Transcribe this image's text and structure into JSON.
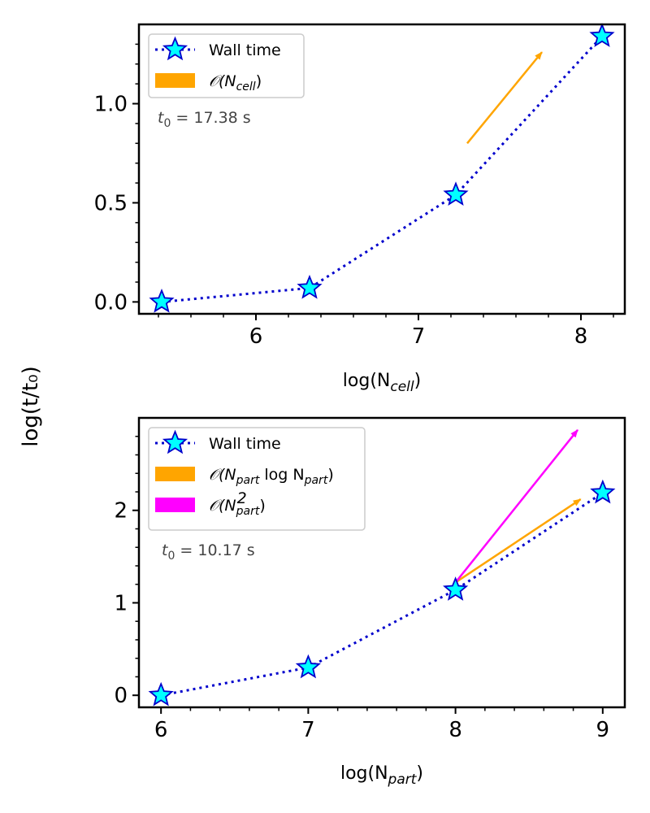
{
  "figure": {
    "ylabel": "log(t/t₀)"
  },
  "chart_data": [
    {
      "type": "line",
      "xlabel": "log(N_cell)",
      "xlabel_main": "log(N",
      "xlabel_sub": "cell",
      "xlabel_close": ")",
      "xlim": [
        5.28,
        8.27
      ],
      "ylim": [
        -0.06,
        1.4
      ],
      "xticks": [
        6,
        7,
        8
      ],
      "xtick_labels": [
        "6",
        "7",
        "8"
      ],
      "xminor": [
        5.4,
        5.6,
        5.8,
        6.2,
        6.4,
        6.6,
        6.8,
        7.2,
        7.4,
        7.6,
        7.8,
        8.2
      ],
      "yticks": [
        0.0,
        0.5,
        1.0
      ],
      "ytick_labels": [
        "0.0",
        "0.5",
        "1.0"
      ],
      "yminor": [
        0.1,
        0.2,
        0.3,
        0.4,
        0.6,
        0.7,
        0.8,
        0.9,
        1.1,
        1.2,
        1.3
      ],
      "grid": false,
      "series": [
        {
          "name": "Wall time",
          "x": [
            5.42,
            6.33,
            7.23,
            8.13
          ],
          "y": [
            0.0,
            0.07,
            0.54,
            1.34
          ],
          "color": "#0000cc",
          "marker_fill": "#00ffff"
        }
      ],
      "arrows": [
        {
          "label": "𝒪(N_cell)",
          "x": [
            7.3,
            7.76
          ],
          "y": [
            0.8,
            1.26
          ],
          "color": "#ffa500"
        }
      ],
      "legend": {
        "placement": "upper-left",
        "entries": [
          {
            "label": "Wall time",
            "kind": "line-marker",
            "color": "#0000cc"
          },
          {
            "label_main": "𝒪(N",
            "label_sub": "cell",
            "label_sup": "",
            "label_close": ")",
            "kind": "patch",
            "color": "#ffa500"
          }
        ]
      },
      "annotation": {
        "main": "t",
        "sub": "0",
        "rest": " = 17.38 s"
      }
    },
    {
      "type": "line",
      "xlabel": "log(N_part)",
      "xlabel_main": "log(N",
      "xlabel_sub": "part",
      "xlabel_close": ")",
      "xlim": [
        5.85,
        9.15
      ],
      "ylim": [
        -0.13,
        3.0
      ],
      "xticks": [
        6,
        7,
        8,
        9
      ],
      "xtick_labels": [
        "6",
        "7",
        "8",
        "9"
      ],
      "xminor": [
        6.2,
        6.4,
        6.6,
        6.8,
        7.2,
        7.4,
        7.6,
        7.8,
        8.2,
        8.4,
        8.6,
        8.8
      ],
      "yticks": [
        0,
        1,
        2
      ],
      "ytick_labels": [
        "0",
        "1",
        "2"
      ],
      "yminor": [
        0.2,
        0.4,
        0.6,
        0.8,
        1.2,
        1.4,
        1.6,
        1.8,
        2.2,
        2.4,
        2.6,
        2.8
      ],
      "grid": false,
      "series": [
        {
          "name": "Wall time",
          "x": [
            6,
            7,
            8,
            9
          ],
          "y": [
            0.0,
            0.3,
            1.14,
            2.19
          ],
          "color": "#0000cc",
          "marker_fill": "#00ffff"
        }
      ],
      "arrows": [
        {
          "label": "𝒪(N_part log N_part)",
          "x": [
            8.0,
            8.85
          ],
          "y": [
            1.22,
            2.12
          ],
          "color": "#ffa500"
        },
        {
          "label": "𝒪(N_part²)",
          "x": [
            8.0,
            8.83
          ],
          "y": [
            1.22,
            2.87
          ],
          "color": "#ff00ff"
        }
      ],
      "legend": {
        "placement": "upper-left",
        "entries": [
          {
            "label": "Wall time",
            "kind": "line-marker",
            "color": "#0000cc"
          },
          {
            "label_main": "𝒪(N",
            "label_sub": "part",
            "label_mid": " log N",
            "label_sub2": "part",
            "label_close": ")",
            "kind": "patch",
            "color": "#ffa500"
          },
          {
            "label_main": "𝒪(N",
            "label_sub": "part",
            "label_sup": "2",
            "label_close": ")",
            "kind": "patch",
            "color": "#ff00ff"
          }
        ]
      },
      "annotation": {
        "main": "t",
        "sub": "0",
        "rest": " = 10.17 s"
      }
    }
  ]
}
